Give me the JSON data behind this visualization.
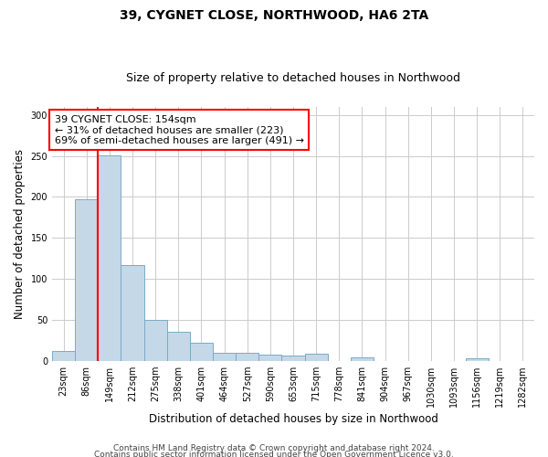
{
  "title1": "39, CYGNET CLOSE, NORTHWOOD, HA6 2TA",
  "title2": "Size of property relative to detached houses in Northwood",
  "xlabel": "Distribution of detached houses by size in Northwood",
  "ylabel": "Number of detached properties",
  "bar_labels": [
    "23sqm",
    "86sqm",
    "149sqm",
    "212sqm",
    "275sqm",
    "338sqm",
    "401sqm",
    "464sqm",
    "527sqm",
    "590sqm",
    "653sqm",
    "715sqm",
    "778sqm",
    "841sqm",
    "904sqm",
    "967sqm",
    "1030sqm",
    "1093sqm",
    "1156sqm",
    "1219sqm",
    "1282sqm"
  ],
  "bar_heights": [
    12,
    197,
    251,
    117,
    50,
    35,
    22,
    10,
    10,
    8,
    6,
    9,
    0,
    4,
    0,
    0,
    0,
    0,
    3,
    0,
    0
  ],
  "bar_color": "#c5d8e8",
  "bar_edge_color": "#7aaac8",
  "red_line_index": 2,
  "annotation_text": "39 CYGNET CLOSE: 154sqm\n← 31% of detached houses are smaller (223)\n69% of semi-detached houses are larger (491) →",
  "annotation_box_color": "white",
  "annotation_box_edge": "red",
  "ylim": [
    0,
    310
  ],
  "yticks": [
    0,
    50,
    100,
    150,
    200,
    250,
    300
  ],
  "footer1": "Contains HM Land Registry data © Crown copyright and database right 2024.",
  "footer2": "Contains public sector information licensed under the Open Government Licence v3.0.",
  "bg_color": "white",
  "grid_color": "#cccccc",
  "title1_fontsize": 10,
  "title2_fontsize": 9,
  "xlabel_fontsize": 8.5,
  "ylabel_fontsize": 8.5,
  "tick_fontsize": 7,
  "footer_fontsize": 6.5,
  "ann_fontsize": 8
}
